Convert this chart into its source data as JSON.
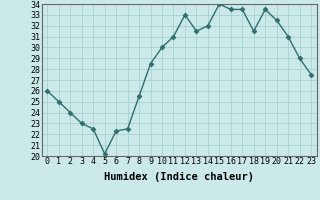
{
  "x": [
    0,
    1,
    2,
    3,
    4,
    5,
    6,
    7,
    8,
    9,
    10,
    11,
    12,
    13,
    14,
    15,
    16,
    17,
    18,
    19,
    20,
    21,
    22,
    23
  ],
  "y": [
    26.0,
    25.0,
    24.0,
    23.0,
    22.5,
    20.2,
    22.3,
    22.5,
    25.5,
    28.5,
    30.0,
    31.0,
    33.0,
    31.5,
    32.0,
    34.0,
    33.5,
    33.5,
    31.5,
    33.5,
    32.5,
    31.0,
    29.0,
    27.5
  ],
  "line_color": "#2d6e6e",
  "marker": "D",
  "markersize": 2.5,
  "linewidth": 1.0,
  "xlabel": "Humidex (Indice chaleur)",
  "ylim": [
    20,
    34
  ],
  "yticks": [
    20,
    21,
    22,
    23,
    24,
    25,
    26,
    27,
    28,
    29,
    30,
    31,
    32,
    33,
    34
  ],
  "xticks": [
    0,
    1,
    2,
    3,
    4,
    5,
    6,
    7,
    8,
    9,
    10,
    11,
    12,
    13,
    14,
    15,
    16,
    17,
    18,
    19,
    20,
    21,
    22,
    23
  ],
  "background_color": "#cce9e9",
  "grid_color": "#aad0d0",
  "xlabel_fontsize": 7.5,
  "tick_fontsize": 6.0
}
